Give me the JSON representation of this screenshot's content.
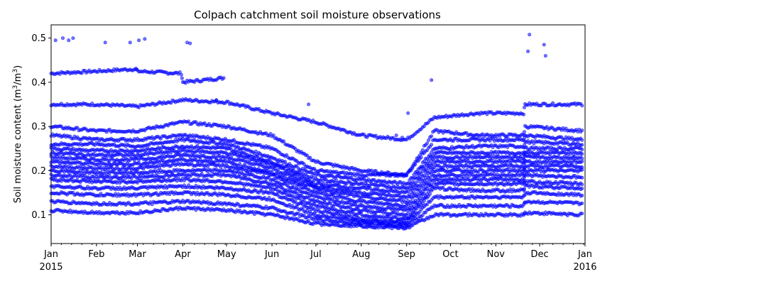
{
  "chart_data": {
    "type": "scatter",
    "title": "Colpach catchment soil moisture observations",
    "xlabel": "",
    "ylabel": "Soil moisture content (m³/m³)",
    "ylabel_base": "Soil moisture content (m",
    "ylabel_sup1": "3",
    "ylabel_mid": "/m",
    "ylabel_sup2": "3",
    "ylabel_end": ")",
    "xlim": [
      "2015-01-01",
      "2016-01-01"
    ],
    "ylim": [
      0.035,
      0.53
    ],
    "x_ticks": [
      {
        "date": "2015-01-01",
        "label": "Jan",
        "sublabel": "2015"
      },
      {
        "date": "2015-02-01",
        "label": "Feb",
        "sublabel": ""
      },
      {
        "date": "2015-03-01",
        "label": "Mar",
        "sublabel": ""
      },
      {
        "date": "2015-04-01",
        "label": "Apr",
        "sublabel": ""
      },
      {
        "date": "2015-05-01",
        "label": "May",
        "sublabel": ""
      },
      {
        "date": "2015-06-01",
        "label": "Jun",
        "sublabel": ""
      },
      {
        "date": "2015-07-01",
        "label": "Jul",
        "sublabel": ""
      },
      {
        "date": "2015-08-01",
        "label": "Aug",
        "sublabel": ""
      },
      {
        "date": "2015-09-01",
        "label": "Sep",
        "sublabel": ""
      },
      {
        "date": "2015-10-01",
        "label": "Oct",
        "sublabel": ""
      },
      {
        "date": "2015-11-01",
        "label": "Nov",
        "sublabel": ""
      },
      {
        "date": "2015-12-01",
        "label": "Dec",
        "sublabel": ""
      },
      {
        "date": "2016-01-01",
        "label": "Jan",
        "sublabel": "2016"
      }
    ],
    "y_ticks": [
      "0.1",
      "0.2",
      "0.3",
      "0.4",
      "0.5"
    ],
    "grid": false,
    "legend": "none",
    "marker_color": "#0000ff",
    "sensor_profiles": [
      {
        "name": "s01",
        "values": [
          [
            "2015-01-01",
            0.42
          ],
          [
            "2015-02-01",
            0.425
          ],
          [
            "2015-02-28",
            0.43
          ],
          [
            "2015-03-01",
            0.425
          ],
          [
            "2015-03-31",
            0.42
          ],
          [
            "2015-04-01",
            0.4
          ],
          [
            "2015-04-30",
            0.41
          ]
        ]
      },
      {
        "name": "s02",
        "values": [
          [
            "2015-01-01",
            0.35
          ],
          [
            "2015-02-01",
            0.35
          ],
          [
            "2015-03-01",
            0.345
          ],
          [
            "2015-04-01",
            0.36
          ],
          [
            "2015-05-01",
            0.355
          ],
          [
            "2015-06-01",
            0.33
          ],
          [
            "2015-07-01",
            0.31
          ],
          [
            "2015-08-01",
            0.28
          ],
          [
            "2015-09-01",
            0.27
          ],
          [
            "2015-09-20",
            0.32
          ],
          [
            "2015-10-20",
            0.33
          ],
          [
            "2015-11-20",
            0.33
          ],
          [
            "2015-11-21",
            0.35
          ],
          [
            "2015-12-31",
            0.35
          ]
        ]
      },
      {
        "name": "s03",
        "values": [
          [
            "2015-01-01",
            0.3
          ],
          [
            "2015-02-01",
            0.29
          ],
          [
            "2015-03-01",
            0.29
          ],
          [
            "2015-04-01",
            0.31
          ],
          [
            "2015-05-01",
            0.3
          ],
          [
            "2015-06-01",
            0.28
          ],
          [
            "2015-07-01",
            0.22
          ],
          [
            "2015-08-01",
            0.2
          ],
          [
            "2015-09-01",
            0.19
          ],
          [
            "2015-09-20",
            0.29
          ],
          [
            "2015-10-20",
            0.28
          ],
          [
            "2015-11-20",
            0.28
          ],
          [
            "2015-11-21",
            0.3
          ],
          [
            "2015-12-31",
            0.29
          ]
        ]
      },
      {
        "name": "s04",
        "values": [
          [
            "2015-01-01",
            0.28
          ],
          [
            "2015-02-01",
            0.27
          ],
          [
            "2015-03-01",
            0.27
          ],
          [
            "2015-04-01",
            0.28
          ],
          [
            "2015-05-01",
            0.27
          ],
          [
            "2015-06-01",
            0.25
          ],
          [
            "2015-07-01",
            0.2
          ],
          [
            "2015-08-01",
            0.19
          ],
          [
            "2015-09-01",
            0.19
          ],
          [
            "2015-09-20",
            0.27
          ],
          [
            "2015-10-20",
            0.27
          ],
          [
            "2015-11-20",
            0.27
          ],
          [
            "2015-11-21",
            0.28
          ],
          [
            "2015-12-31",
            0.27
          ]
        ]
      },
      {
        "name": "s05",
        "values": [
          [
            "2015-01-01",
            0.26
          ],
          [
            "2015-02-01",
            0.26
          ],
          [
            "2015-03-01",
            0.255
          ],
          [
            "2015-04-01",
            0.27
          ],
          [
            "2015-05-01",
            0.26
          ],
          [
            "2015-06-01",
            0.23
          ],
          [
            "2015-07-01",
            0.19
          ],
          [
            "2015-08-01",
            0.18
          ],
          [
            "2015-09-01",
            0.17
          ],
          [
            "2015-09-20",
            0.25
          ],
          [
            "2015-10-20",
            0.255
          ],
          [
            "2015-11-20",
            0.255
          ],
          [
            "2015-11-21",
            0.265
          ],
          [
            "2015-12-31",
            0.26
          ]
        ]
      },
      {
        "name": "s06",
        "values": [
          [
            "2015-01-01",
            0.25
          ],
          [
            "2015-02-01",
            0.245
          ],
          [
            "2015-03-01",
            0.245
          ],
          [
            "2015-04-01",
            0.255
          ],
          [
            "2015-05-01",
            0.25
          ],
          [
            "2015-06-01",
            0.22
          ],
          [
            "2015-07-01",
            0.18
          ],
          [
            "2015-08-01",
            0.17
          ],
          [
            "2015-09-01",
            0.16
          ],
          [
            "2015-09-20",
            0.24
          ],
          [
            "2015-10-20",
            0.24
          ],
          [
            "2015-11-20",
            0.24
          ],
          [
            "2015-11-21",
            0.25
          ],
          [
            "2015-12-31",
            0.25
          ]
        ]
      },
      {
        "name": "s07",
        "values": [
          [
            "2015-01-01",
            0.24
          ],
          [
            "2015-02-01",
            0.235
          ],
          [
            "2015-03-01",
            0.235
          ],
          [
            "2015-04-01",
            0.245
          ],
          [
            "2015-05-01",
            0.24
          ],
          [
            "2015-06-01",
            0.215
          ],
          [
            "2015-07-01",
            0.17
          ],
          [
            "2015-08-01",
            0.16
          ],
          [
            "2015-09-01",
            0.15
          ],
          [
            "2015-09-20",
            0.23
          ],
          [
            "2015-10-20",
            0.23
          ],
          [
            "2015-11-20",
            0.23
          ],
          [
            "2015-11-21",
            0.24
          ],
          [
            "2015-12-31",
            0.24
          ]
        ]
      },
      {
        "name": "s08",
        "values": [
          [
            "2015-01-01",
            0.23
          ],
          [
            "2015-02-01",
            0.225
          ],
          [
            "2015-03-01",
            0.225
          ],
          [
            "2015-04-01",
            0.235
          ],
          [
            "2015-05-01",
            0.23
          ],
          [
            "2015-06-01",
            0.205
          ],
          [
            "2015-07-01",
            0.165
          ],
          [
            "2015-08-01",
            0.15
          ],
          [
            "2015-09-01",
            0.14
          ],
          [
            "2015-09-20",
            0.22
          ],
          [
            "2015-10-20",
            0.22
          ],
          [
            "2015-11-20",
            0.22
          ],
          [
            "2015-11-21",
            0.23
          ],
          [
            "2015-12-31",
            0.23
          ]
        ]
      },
      {
        "name": "s09",
        "values": [
          [
            "2015-01-01",
            0.22
          ],
          [
            "2015-02-01",
            0.215
          ],
          [
            "2015-03-01",
            0.215
          ],
          [
            "2015-04-01",
            0.225
          ],
          [
            "2015-05-01",
            0.22
          ],
          [
            "2015-06-01",
            0.195
          ],
          [
            "2015-07-01",
            0.16
          ],
          [
            "2015-08-01",
            0.14
          ],
          [
            "2015-09-01",
            0.13
          ],
          [
            "2015-09-20",
            0.21
          ],
          [
            "2015-10-20",
            0.21
          ],
          [
            "2015-11-20",
            0.21
          ],
          [
            "2015-11-21",
            0.22
          ],
          [
            "2015-12-31",
            0.22
          ]
        ]
      },
      {
        "name": "s10",
        "values": [
          [
            "2015-01-01",
            0.21
          ],
          [
            "2015-02-01",
            0.205
          ],
          [
            "2015-03-01",
            0.205
          ],
          [
            "2015-04-01",
            0.215
          ],
          [
            "2015-05-01",
            0.21
          ],
          [
            "2015-06-01",
            0.19
          ],
          [
            "2015-07-01",
            0.15
          ],
          [
            "2015-08-01",
            0.13
          ],
          [
            "2015-09-01",
            0.12
          ],
          [
            "2015-09-20",
            0.2
          ],
          [
            "2015-10-20",
            0.2
          ],
          [
            "2015-11-20",
            0.2
          ],
          [
            "2015-11-21",
            0.21
          ],
          [
            "2015-12-31",
            0.21
          ]
        ]
      },
      {
        "name": "s11",
        "values": [
          [
            "2015-01-01",
            0.2
          ],
          [
            "2015-02-01",
            0.195
          ],
          [
            "2015-03-01",
            0.195
          ],
          [
            "2015-04-01",
            0.2
          ],
          [
            "2015-05-01",
            0.2
          ],
          [
            "2015-06-01",
            0.18
          ],
          [
            "2015-07-01",
            0.14
          ],
          [
            "2015-08-01",
            0.12
          ],
          [
            "2015-09-01",
            0.11
          ],
          [
            "2015-09-20",
            0.19
          ],
          [
            "2015-10-20",
            0.19
          ],
          [
            "2015-11-20",
            0.19
          ],
          [
            "2015-11-21",
            0.2
          ],
          [
            "2015-12-31",
            0.2
          ]
        ]
      },
      {
        "name": "s12",
        "values": [
          [
            "2015-01-01",
            0.19
          ],
          [
            "2015-02-01",
            0.185
          ],
          [
            "2015-03-01",
            0.185
          ],
          [
            "2015-04-01",
            0.19
          ],
          [
            "2015-05-01",
            0.19
          ],
          [
            "2015-06-01",
            0.17
          ],
          [
            "2015-07-01",
            0.13
          ],
          [
            "2015-08-01",
            0.11
          ],
          [
            "2015-09-01",
            0.1
          ],
          [
            "2015-09-20",
            0.18
          ],
          [
            "2015-10-20",
            0.18
          ],
          [
            "2015-11-20",
            0.18
          ],
          [
            "2015-11-21",
            0.19
          ],
          [
            "2015-12-31",
            0.185
          ]
        ]
      },
      {
        "name": "s13",
        "values": [
          [
            "2015-01-01",
            0.18
          ],
          [
            "2015-02-01",
            0.175
          ],
          [
            "2015-03-01",
            0.175
          ],
          [
            "2015-04-01",
            0.18
          ],
          [
            "2015-05-01",
            0.175
          ],
          [
            "2015-06-01",
            0.16
          ],
          [
            "2015-07-01",
            0.12
          ],
          [
            "2015-08-01",
            0.1
          ],
          [
            "2015-09-01",
            0.09
          ],
          [
            "2015-09-20",
            0.17
          ],
          [
            "2015-10-20",
            0.17
          ],
          [
            "2015-11-20",
            0.17
          ],
          [
            "2015-11-21",
            0.175
          ],
          [
            "2015-12-31",
            0.17
          ]
        ]
      },
      {
        "name": "s14",
        "values": [
          [
            "2015-01-01",
            0.165
          ],
          [
            "2015-02-01",
            0.16
          ],
          [
            "2015-03-01",
            0.16
          ],
          [
            "2015-04-01",
            0.165
          ],
          [
            "2015-05-01",
            0.16
          ],
          [
            "2015-06-01",
            0.15
          ],
          [
            "2015-07-01",
            0.11
          ],
          [
            "2015-08-01",
            0.09
          ],
          [
            "2015-09-01",
            0.085
          ],
          [
            "2015-09-20",
            0.16
          ],
          [
            "2015-10-20",
            0.155
          ],
          [
            "2015-11-20",
            0.155
          ],
          [
            "2015-11-21",
            0.165
          ],
          [
            "2015-12-31",
            0.16
          ]
        ]
      },
      {
        "name": "s15",
        "values": [
          [
            "2015-01-01",
            0.15
          ],
          [
            "2015-02-01",
            0.145
          ],
          [
            "2015-03-01",
            0.145
          ],
          [
            "2015-04-01",
            0.15
          ],
          [
            "2015-05-01",
            0.145
          ],
          [
            "2015-06-01",
            0.135
          ],
          [
            "2015-07-01",
            0.1
          ],
          [
            "2015-08-01",
            0.085
          ],
          [
            "2015-09-01",
            0.08
          ],
          [
            "2015-09-20",
            0.14
          ],
          [
            "2015-10-20",
            0.14
          ],
          [
            "2015-11-20",
            0.14
          ],
          [
            "2015-11-21",
            0.15
          ],
          [
            "2015-12-31",
            0.145
          ]
        ]
      },
      {
        "name": "s16",
        "values": [
          [
            "2015-01-01",
            0.13
          ],
          [
            "2015-02-01",
            0.125
          ],
          [
            "2015-03-01",
            0.125
          ],
          [
            "2015-04-01",
            0.13
          ],
          [
            "2015-05-01",
            0.125
          ],
          [
            "2015-06-01",
            0.115
          ],
          [
            "2015-07-01",
            0.09
          ],
          [
            "2015-08-01",
            0.08
          ],
          [
            "2015-09-01",
            0.075
          ],
          [
            "2015-09-20",
            0.12
          ],
          [
            "2015-10-20",
            0.12
          ],
          [
            "2015-11-20",
            0.12
          ],
          [
            "2015-11-21",
            0.13
          ],
          [
            "2015-12-31",
            0.125
          ]
        ]
      },
      {
        "name": "s17",
        "values": [
          [
            "2015-01-01",
            0.11
          ],
          [
            "2015-02-01",
            0.105
          ],
          [
            "2015-03-01",
            0.105
          ],
          [
            "2015-04-01",
            0.115
          ],
          [
            "2015-05-01",
            0.11
          ],
          [
            "2015-06-01",
            0.1
          ],
          [
            "2015-07-01",
            0.08
          ],
          [
            "2015-08-01",
            0.075
          ],
          [
            "2015-09-01",
            0.07
          ],
          [
            "2015-09-20",
            0.1
          ],
          [
            "2015-10-20",
            0.1
          ],
          [
            "2015-11-20",
            0.1
          ],
          [
            "2015-11-21",
            0.105
          ],
          [
            "2015-12-31",
            0.1
          ]
        ]
      }
    ],
    "outlier_points": [
      [
        "2015-01-04",
        0.495
      ],
      [
        "2015-01-09",
        0.5
      ],
      [
        "2015-01-13",
        0.495
      ],
      [
        "2015-01-16",
        0.5
      ],
      [
        "2015-02-07",
        0.49
      ],
      [
        "2015-02-24",
        0.49
      ],
      [
        "2015-03-02",
        0.495
      ],
      [
        "2015-03-06",
        0.498
      ],
      [
        "2015-04-04",
        0.49
      ],
      [
        "2015-04-06",
        0.488
      ],
      [
        "2015-06-26",
        0.35
      ],
      [
        "2015-09-02",
        0.33
      ],
      [
        "2015-09-18",
        0.405
      ],
      [
        "2015-11-23",
        0.47
      ],
      [
        "2015-11-24",
        0.508
      ],
      [
        "2015-12-04",
        0.485
      ],
      [
        "2015-12-05",
        0.46
      ],
      [
        "2015-08-25",
        0.28
      ],
      [
        "2015-08-29",
        0.275
      ],
      [
        "2015-04-24",
        0.36
      ]
    ]
  }
}
